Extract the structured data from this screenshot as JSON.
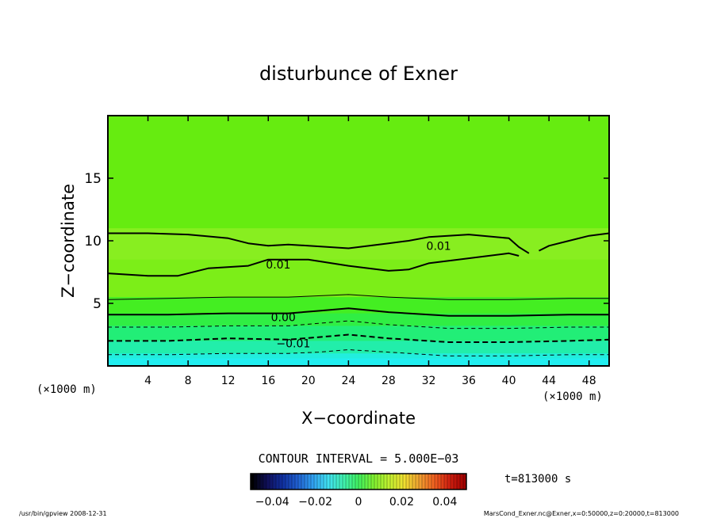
{
  "chart_data": {
    "type": "heatmap",
    "title": "disturbunce of Exner",
    "xlabel": "X−coordinate",
    "ylabel": "Z−coordinate",
    "xlim": [
      0,
      50
    ],
    "ylim": [
      0,
      20
    ],
    "x_ticks": [
      4,
      8,
      12,
      16,
      20,
      24,
      28,
      32,
      36,
      40,
      44,
      48
    ],
    "y_ticks": [
      5,
      10,
      15
    ],
    "x_unit_label": "(×1000 m)",
    "y_unit_label": "(×1000 m)",
    "contour_interval_text": "CONTOUR INTERVAL = 5.000E−03",
    "time_label": "t=813000 s",
    "colorbar": {
      "range": [
        -0.05,
        0.05
      ],
      "tick_values": [
        -0.04,
        -0.02,
        0,
        0.02,
        0.04
      ],
      "tick_labels": [
        "−0.04",
        "−0.02",
        "0",
        "0.02",
        "0.04"
      ],
      "colors": [
        "#000000",
        "#10105a",
        "#1030a0",
        "#2060d0",
        "#30a0f0",
        "#40e0f0",
        "#40f0b0",
        "#40f060",
        "#80f030",
        "#c0f030",
        "#f0e030",
        "#f0a030",
        "#f06020",
        "#d02010",
        "#a00000"
      ]
    },
    "contours": [
      {
        "level": 0.01,
        "label": "0.01",
        "style": "solid-bold",
        "x": [
          0,
          4,
          8,
          12,
          14,
          16,
          18,
          20,
          24,
          28,
          30,
          32,
          36,
          40,
          41,
          42
        ],
        "y": [
          10.6,
          10.6,
          10.5,
          10.2,
          9.8,
          9.6,
          9.7,
          9.6,
          9.4,
          9.8,
          10.0,
          10.3,
          10.5,
          10.2,
          9.5,
          9.0
        ]
      },
      {
        "level": 0.01,
        "label": "0.01",
        "style": "solid-bold",
        "x": [
          43,
          44,
          46,
          48,
          50
        ],
        "y": [
          9.2,
          9.6,
          10.0,
          10.4,
          10.6
        ]
      },
      {
        "level": 0.01,
        "label": "0.01",
        "style": "solid-bold",
        "x": [
          0,
          4,
          7,
          10,
          14,
          16,
          20,
          24,
          28,
          30,
          32,
          36,
          40,
          41
        ],
        "y": [
          7.4,
          7.2,
          7.2,
          7.8,
          8.0,
          8.5,
          8.5,
          8.0,
          7.6,
          7.7,
          8.2,
          8.6,
          9.0,
          8.8
        ]
      },
      {
        "level": 0.005,
        "label": "",
        "style": "solid-thin",
        "x": [
          0,
          6,
          12,
          18,
          21,
          24,
          28,
          34,
          40,
          46,
          50
        ],
        "y": [
          5.3,
          5.4,
          5.5,
          5.5,
          5.6,
          5.7,
          5.5,
          5.3,
          5.3,
          5.4,
          5.4
        ]
      },
      {
        "level": 0.0,
        "label": "0.00",
        "style": "solid-bold",
        "x": [
          0,
          6,
          12,
          18,
          21,
          24,
          28,
          34,
          40,
          46,
          50
        ],
        "y": [
          4.1,
          4.1,
          4.2,
          4.2,
          4.4,
          4.6,
          4.3,
          4.0,
          4.0,
          4.1,
          4.1
        ]
      },
      {
        "level": -0.005,
        "label": "",
        "style": "dashed-thin",
        "x": [
          0,
          6,
          12,
          18,
          21,
          24,
          28,
          34,
          40,
          46,
          50
        ],
        "y": [
          3.1,
          3.1,
          3.2,
          3.2,
          3.4,
          3.6,
          3.3,
          3.0,
          3.0,
          3.1,
          3.1
        ]
      },
      {
        "level": -0.01,
        "label": "−0.01",
        "style": "dashed-bold",
        "x": [
          0,
          6,
          12,
          18,
          21,
          24,
          28,
          34,
          40,
          46,
          50
        ],
        "y": [
          2.0,
          2.0,
          2.2,
          2.1,
          2.3,
          2.5,
          2.2,
          1.9,
          1.9,
          2.0,
          2.1
        ]
      },
      {
        "level": -0.015,
        "label": "",
        "style": "dashed-thin",
        "x": [
          0,
          6,
          12,
          18,
          21,
          24,
          28,
          34,
          40,
          46,
          50
        ],
        "y": [
          0.9,
          0.9,
          1.0,
          1.0,
          1.1,
          1.3,
          1.1,
          0.8,
          0.8,
          0.9,
          0.9
        ]
      }
    ],
    "contour_labels": [
      {
        "text": "0.01",
        "x": 33,
        "y": 9.6
      },
      {
        "text": "0.01",
        "x": 17,
        "y": 8.1
      },
      {
        "text": "0.00",
        "x": 17.5,
        "y": 3.9
      },
      {
        "text": "−0.01",
        "x": 18.5,
        "y": 1.8
      }
    ],
    "fill_bands": [
      {
        "z": 20,
        "color": "#66ec10"
      },
      {
        "z": 11,
        "color": "#88ee20"
      },
      {
        "z": 8.5,
        "color": "#7cee18"
      },
      {
        "z": 5.5,
        "color": "#44ee22"
      },
      {
        "z": 4.2,
        "color": "#30ee44"
      },
      {
        "z": 3.2,
        "color": "#22ee77"
      },
      {
        "z": 2.0,
        "color": "#22eeaa"
      },
      {
        "z": 1.0,
        "color": "#22eedd"
      },
      {
        "z": 0.6,
        "color": "#22eef0"
      }
    ]
  },
  "footer": {
    "left": "/usr/bin/gpview   2008-12-31",
    "right": "MarsCond_Exner.nc@Exner,x=0:50000,z=0:20000,t=813000"
  },
  "colors": {
    "frame": "#000000",
    "background": "#ffffff"
  }
}
